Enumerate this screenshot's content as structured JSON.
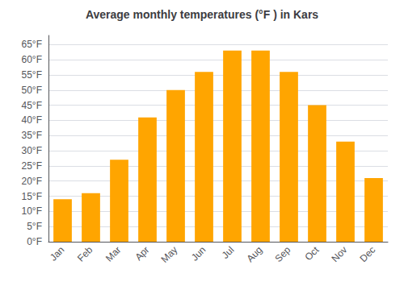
{
  "chart_data": {
    "type": "bar",
    "title": "Average monthly temperatures (°F ) in Kars",
    "categories": [
      "Jan",
      "Feb",
      "Mar",
      "Apr",
      "May",
      "Jun",
      "Jul",
      "Aug",
      "Sep",
      "Oct",
      "Nov",
      "Dec"
    ],
    "values": [
      14,
      16,
      27,
      41,
      50,
      56,
      63,
      63,
      56,
      45,
      33,
      21
    ],
    "color": "#FFA500",
    "ylim": [
      0,
      68
    ],
    "yticks": [
      {
        "value": 0,
        "label": "0°F"
      },
      {
        "value": 5,
        "label": "5°F"
      },
      {
        "value": 10,
        "label": "10°F"
      },
      {
        "value": 15,
        "label": "15°F"
      },
      {
        "value": 20,
        "label": "20°F"
      },
      {
        "value": 25,
        "label": "25°F"
      },
      {
        "value": 30,
        "label": "30°F"
      },
      {
        "value": 35,
        "label": "35°F"
      },
      {
        "value": 40,
        "label": "40°F"
      },
      {
        "value": 45,
        "label": "45°F"
      },
      {
        "value": 50,
        "label": "50°F"
      },
      {
        "value": 55,
        "label": "55°F"
      },
      {
        "value": 60,
        "label": "60°F"
      },
      {
        "value": 65,
        "label": "65°F"
      }
    ],
    "grid": true
  }
}
